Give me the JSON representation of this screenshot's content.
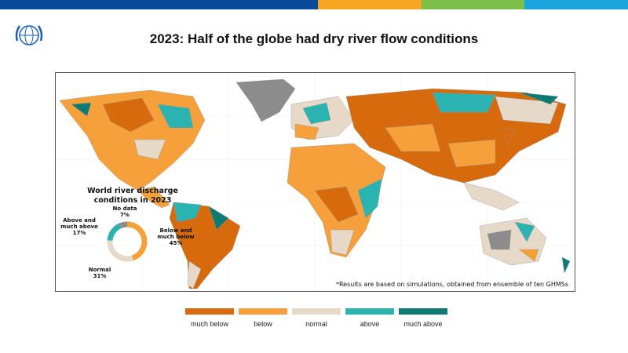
{
  "title": "2023: Half of the globe had dry river flow conditions",
  "colors": {
    "much_below": "#d66a0d",
    "below": "#f5a03a",
    "normal": "#e7d9c8",
    "above": "#2ab3b1",
    "much_above": "#0d7a74",
    "no_data": "#8c8c8c",
    "top_bar": [
      "#0a4a9b",
      "#f5a623",
      "#7bbf4a",
      "#1aa6dc"
    ]
  },
  "donut": {
    "title": "World river discharge conditions in 2023",
    "segments": [
      {
        "label": "Below and much below",
        "percent": 45,
        "value_text": "45%",
        "color": "#f5a03a"
      },
      {
        "label": "Normal",
        "percent": 31,
        "value_text": "31%",
        "color": "#e7d9c8"
      },
      {
        "label": "Above and much above",
        "percent": 17,
        "value_text": "17%",
        "color": "#2ab3b1"
      },
      {
        "label": "No data",
        "percent": 7,
        "value_text": "7%",
        "color": "#8c8c8c"
      }
    ]
  },
  "note": "*Results are based on simulations, obtained from ensemble of ten GHMSs",
  "legend": [
    {
      "label": "much below",
      "color": "#d66a0d"
    },
    {
      "label": "below",
      "color": "#f5a03a"
    },
    {
      "label": "normal",
      "color": "#e7d9c8"
    },
    {
      "label": "above",
      "color": "#2ab3b1"
    },
    {
      "label": "much above",
      "color": "#0d7a74"
    }
  ]
}
